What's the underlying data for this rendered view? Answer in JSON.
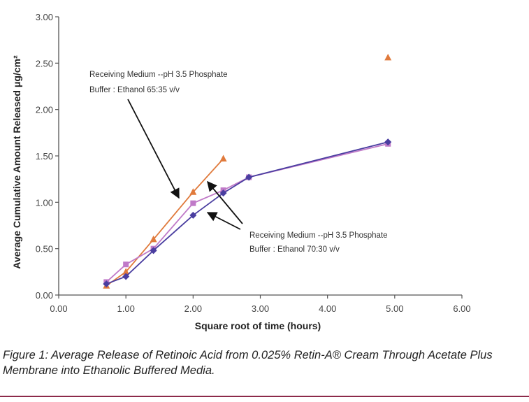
{
  "chart_data": {
    "type": "line",
    "xlabel": "Square root of time (hours)",
    "ylabel": "Average Cumulative Amount Released μg/cm²",
    "xlim": [
      0,
      6
    ],
    "ylim": [
      0,
      3
    ],
    "xticks": [
      "0.00",
      "1.00",
      "2.00",
      "3.00",
      "4.00",
      "5.00",
      "6.00"
    ],
    "yticks": [
      "0.00",
      "0.50",
      "1.00",
      "1.50",
      "2.00",
      "2.50",
      "3.00"
    ],
    "grid": false,
    "legend": "none",
    "series": [
      {
        "color": "#e07a3c",
        "marker": "triangle",
        "x": [
          0.71,
          1.0,
          1.41,
          2.0,
          2.45
        ],
        "y": [
          0.1,
          0.25,
          0.6,
          1.11,
          1.47
        ],
        "extra_points": [
          {
            "x": 4.9,
            "y": 2.56
          }
        ]
      },
      {
        "color": "#c07ac8",
        "marker": "square",
        "x": [
          0.71,
          1.0,
          1.41,
          2.0,
          2.45,
          2.83,
          4.9
        ],
        "y": [
          0.14,
          0.33,
          0.5,
          0.99,
          1.13,
          1.27,
          1.63
        ]
      },
      {
        "color": "#4a3ea0",
        "marker": "diamond",
        "x": [
          0.71,
          1.0,
          1.41,
          2.0,
          2.45,
          2.83,
          4.9
        ],
        "y": [
          0.12,
          0.2,
          0.48,
          0.86,
          1.1,
          1.27,
          1.65
        ]
      }
    ],
    "annotations": [
      {
        "lines": [
          "Receiving Medium --pH 3.5 Phosphate",
          "Buffer : Ethanol 65:35 v/v"
        ]
      },
      {
        "lines": [
          "Receiving Medium --pH 3.5 Phosphate",
          "Buffer : Ethanol 70:30 v/v"
        ]
      }
    ]
  },
  "caption": "Figure 1: Average Release of Retinoic Acid from 0.025% Retin-A® Cream Through Acetate Plus Membrane into Ethanolic Buffered Media."
}
